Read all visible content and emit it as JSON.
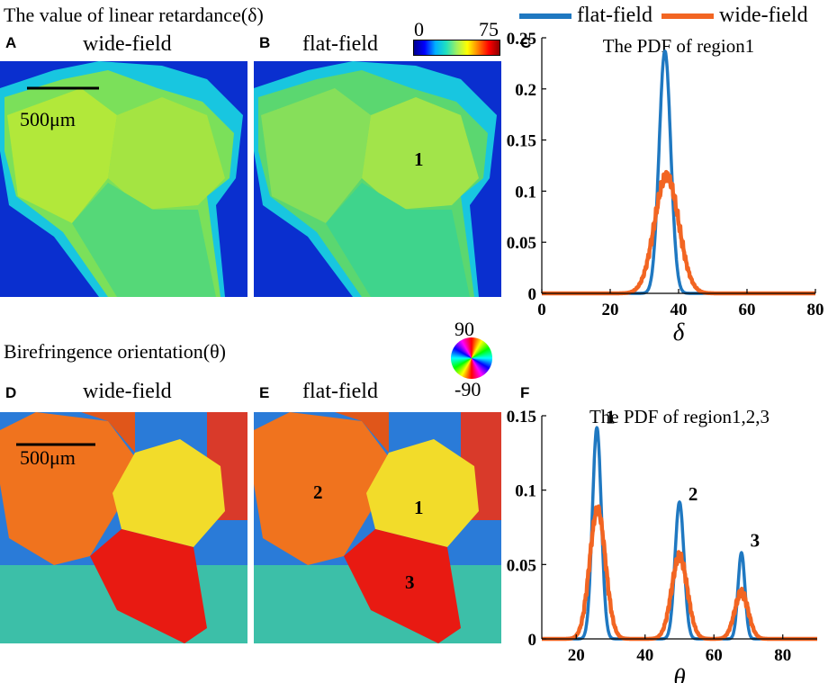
{
  "top_title": "The value of linear retardance(δ)",
  "bottom_title": "Birefringence orientation(θ)",
  "colorbar": {
    "min": "0",
    "max": "75"
  },
  "orientation_wheel": {
    "top": "90",
    "bottom": "-90"
  },
  "legend": [
    {
      "name": "flat-field",
      "color": "#1f78c1"
    },
    {
      "name": "wide-field",
      "color": "#f26522"
    }
  ],
  "panels": {
    "A": {
      "letter": "A",
      "caption": "wide-field",
      "scalebar": "500μm"
    },
    "B": {
      "letter": "B",
      "caption": "flat-field",
      "regions": [
        "1"
      ]
    },
    "C": {
      "letter": "C"
    },
    "D": {
      "letter": "D",
      "caption": "wide-field",
      "scalebar": "500μm"
    },
    "E": {
      "letter": "E",
      "caption": "flat-field",
      "regions": [
        "1",
        "2",
        "3"
      ]
    },
    "F": {
      "letter": "F"
    }
  },
  "chart_data": [
    {
      "type": "line",
      "title": "The PDF of region1",
      "xlabel": "δ",
      "ylabel": "",
      "xlim": [
        0,
        80
      ],
      "ylim": [
        0,
        0.25
      ],
      "xticks": [
        "0",
        "20",
        "40",
        "60",
        "80"
      ],
      "yticks": [
        "0",
        "0.05",
        "0.1",
        "0.15",
        "0.2",
        "0.25"
      ],
      "series": [
        {
          "name": "flat-field",
          "color": "#1f78c1",
          "peaks": [
            {
              "center": 36,
              "height": 0.237,
              "width": 1.7
            }
          ]
        },
        {
          "name": "wide-field",
          "color": "#f26522",
          "peaks": [
            {
              "center": 36.5,
              "height": 0.115,
              "width": 3.5
            }
          ]
        }
      ]
    },
    {
      "type": "line",
      "title": "The PDF of region1,2,3",
      "xlabel": "θ",
      "ylabel": "",
      "xlim": [
        10,
        90
      ],
      "ylim": [
        0,
        0.15
      ],
      "xticks": [
        "20",
        "40",
        "60",
        "80"
      ],
      "yticks": [
        "0",
        "0.05",
        "0.1",
        "0.15"
      ],
      "peak_labels": [
        {
          "text": "1",
          "x": 27,
          "y": 0.145
        },
        {
          "text": "2",
          "x": 51,
          "y": 0.093
        },
        {
          "text": "3",
          "x": 69,
          "y": 0.062
        }
      ],
      "series": [
        {
          "name": "flat-field",
          "color": "#1f78c1",
          "peaks": [
            {
              "center": 26,
              "height": 0.142,
              "width": 1.3
            },
            {
              "center": 50,
              "height": 0.092,
              "width": 1.3
            },
            {
              "center": 68,
              "height": 0.058,
              "width": 1.0
            }
          ]
        },
        {
          "name": "wide-field",
          "color": "#f26522",
          "peaks": [
            {
              "center": 26.2,
              "height": 0.087,
              "width": 2.3
            },
            {
              "center": 50,
              "height": 0.055,
              "width": 2.3
            },
            {
              "center": 68,
              "height": 0.031,
              "width": 2.0
            }
          ]
        }
      ]
    }
  ]
}
